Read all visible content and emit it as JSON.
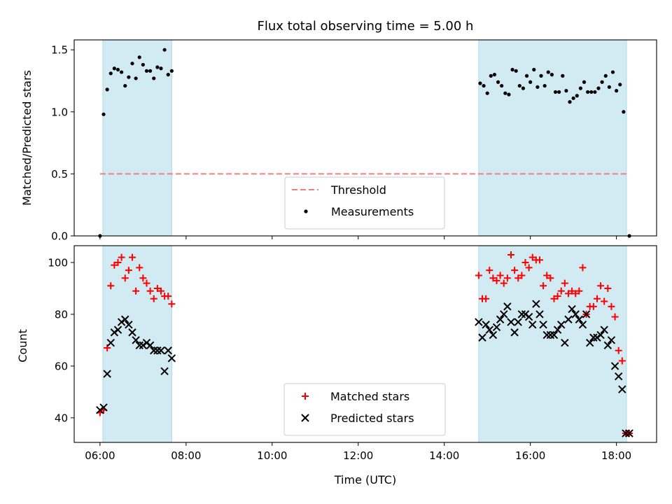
{
  "chart_data": [
    {
      "type": "scatter",
      "title": "Flux total observing time = 5.00 h",
      "xlabel": "",
      "ylabel": "Matched/Predicted stars",
      "x_range": [
        "05:24",
        "18:56"
      ],
      "ylim": [
        0,
        1.58
      ],
      "y_ticks": [
        "0.0",
        "0.5",
        "1.0",
        "1.5"
      ],
      "x_ticks": [
        "06:00",
        "08:00",
        "10:00",
        "12:00",
        "14:00",
        "16:00",
        "18:00"
      ],
      "x_tick_labels_visible": false,
      "shaded_intervals": [
        [
          "06:04",
          "07:40"
        ],
        [
          "14:48",
          "18:14"
        ]
      ],
      "shade_color": "#add8e6",
      "legend_position": "lower center",
      "threshold": {
        "name": "Threshold",
        "value": 0.5,
        "x_start": "06:00",
        "x_end": "18:18",
        "color": "#f08080",
        "style": "dashed"
      },
      "series": [
        {
          "name": "Measurements",
          "color": "#000000",
          "marker": "dot",
          "points": [
            [
              "06:00",
              0.0
            ],
            [
              "06:05",
              0.98
            ],
            [
              "06:10",
              1.18
            ],
            [
              "06:15",
              1.31
            ],
            [
              "06:20",
              1.35
            ],
            [
              "06:25",
              1.34
            ],
            [
              "06:30",
              1.32
            ],
            [
              "06:35",
              1.21
            ],
            [
              "06:40",
              1.28
            ],
            [
              "06:45",
              1.39
            ],
            [
              "06:50",
              1.27
            ],
            [
              "06:55",
              1.44
            ],
            [
              "07:00",
              1.38
            ],
            [
              "07:05",
              1.33
            ],
            [
              "07:10",
              1.33
            ],
            [
              "07:15",
              1.27
            ],
            [
              "07:20",
              1.36
            ],
            [
              "07:25",
              1.35
            ],
            [
              "07:30",
              1.5
            ],
            [
              "07:35",
              1.3
            ],
            [
              "07:40",
              1.33
            ],
            [
              "14:50",
              1.23
            ],
            [
              "14:55",
              1.21
            ],
            [
              "15:00",
              1.15
            ],
            [
              "15:05",
              1.29
            ],
            [
              "15:10",
              1.3
            ],
            [
              "15:15",
              1.24
            ],
            [
              "15:20",
              1.21
            ],
            [
              "15:25",
              1.15
            ],
            [
              "15:30",
              1.14
            ],
            [
              "15:35",
              1.34
            ],
            [
              "15:40",
              1.33
            ],
            [
              "15:45",
              1.21
            ],
            [
              "15:50",
              1.19
            ],
            [
              "15:55",
              1.29
            ],
            [
              "16:00",
              1.24
            ],
            [
              "16:05",
              1.34
            ],
            [
              "16:10",
              1.2
            ],
            [
              "16:15",
              1.29
            ],
            [
              "16:20",
              1.21
            ],
            [
              "16:25",
              1.32
            ],
            [
              "16:30",
              1.3
            ],
            [
              "16:35",
              1.16
            ],
            [
              "16:40",
              1.16
            ],
            [
              "16:45",
              1.29
            ],
            [
              "16:50",
              1.17
            ],
            [
              "16:55",
              1.08
            ],
            [
              "17:00",
              1.11
            ],
            [
              "17:05",
              1.13
            ],
            [
              "17:10",
              1.19
            ],
            [
              "17:15",
              1.24
            ],
            [
              "17:20",
              1.16
            ],
            [
              "17:25",
              1.16
            ],
            [
              "17:30",
              1.16
            ],
            [
              "17:35",
              1.19
            ],
            [
              "17:40",
              1.24
            ],
            [
              "17:45",
              1.29
            ],
            [
              "17:50",
              1.2
            ],
            [
              "17:55",
              1.32
            ],
            [
              "18:00",
              1.17
            ],
            [
              "18:05",
              1.22
            ],
            [
              "18:10",
              1.0
            ],
            [
              "18:18",
              0.0
            ]
          ]
        }
      ]
    },
    {
      "type": "scatter",
      "title": "",
      "xlabel": "Time (UTC)",
      "ylabel": "Count",
      "x_range": [
        "05:24",
        "18:56"
      ],
      "ylim": [
        30.5,
        106.5
      ],
      "y_ticks": [
        "40",
        "60",
        "80",
        "100"
      ],
      "x_ticks": [
        "06:00",
        "08:00",
        "10:00",
        "12:00",
        "14:00",
        "16:00",
        "18:00"
      ],
      "x_tick_labels_visible": true,
      "shaded_intervals": [
        [
          "06:04",
          "07:40"
        ],
        [
          "14:48",
          "18:14"
        ]
      ],
      "shade_color": "#add8e6",
      "legend_position": "lower center",
      "series": [
        {
          "name": "Matched stars",
          "color": "#ff0000",
          "marker": "plus",
          "points": [
            [
              "06:00",
              42
            ],
            [
              "06:05",
              43
            ],
            [
              "06:10",
              67
            ],
            [
              "06:15",
              91
            ],
            [
              "06:20",
              99
            ],
            [
              "06:25",
              100
            ],
            [
              "06:30",
              102
            ],
            [
              "06:35",
              94
            ],
            [
              "06:40",
              97
            ],
            [
              "06:45",
              102
            ],
            [
              "06:50",
              89
            ],
            [
              "06:55",
              98
            ],
            [
              "07:00",
              94
            ],
            [
              "07:05",
              92
            ],
            [
              "07:10",
              89
            ],
            [
              "07:15",
              86
            ],
            [
              "07:20",
              90
            ],
            [
              "07:25",
              89
            ],
            [
              "07:30",
              87
            ],
            [
              "07:35",
              87
            ],
            [
              "07:40",
              84
            ],
            [
              "14:48",
              95
            ],
            [
              "14:53",
              86
            ],
            [
              "14:58",
              86
            ],
            [
              "15:03",
              97
            ],
            [
              "15:08",
              94
            ],
            [
              "15:13",
              93
            ],
            [
              "15:18",
              95
            ],
            [
              "15:23",
              92
            ],
            [
              "15:28",
              94
            ],
            [
              "15:33",
              103
            ],
            [
              "15:38",
              97
            ],
            [
              "15:43",
              94
            ],
            [
              "15:48",
              95
            ],
            [
              "15:53",
              100
            ],
            [
              "15:58",
              98
            ],
            [
              "16:03",
              102
            ],
            [
              "16:08",
              101
            ],
            [
              "16:13",
              101
            ],
            [
              "16:18",
              91
            ],
            [
              "16:23",
              95
            ],
            [
              "16:28",
              94
            ],
            [
              "16:33",
              86
            ],
            [
              "16:38",
              87
            ],
            [
              "16:43",
              89
            ],
            [
              "16:48",
              92
            ],
            [
              "16:53",
              88
            ],
            [
              "16:58",
              89
            ],
            [
              "17:03",
              88
            ],
            [
              "17:08",
              89
            ],
            [
              "17:13",
              98
            ],
            [
              "17:18",
              80
            ],
            [
              "17:23",
              83
            ],
            [
              "17:28",
              83
            ],
            [
              "17:33",
              86
            ],
            [
              "17:38",
              91
            ],
            [
              "17:43",
              85
            ],
            [
              "17:48",
              90
            ],
            [
              "17:53",
              83
            ],
            [
              "17:58",
              79
            ],
            [
              "18:03",
              66
            ],
            [
              "18:08",
              62
            ],
            [
              "18:13",
              34
            ],
            [
              "18:18",
              34
            ]
          ]
        },
        {
          "name": "Predicted stars",
          "color": "#000000",
          "marker": "x",
          "points": [
            [
              "06:00",
              43
            ],
            [
              "06:05",
              44
            ],
            [
              "06:10",
              57
            ],
            [
              "06:15",
              69
            ],
            [
              "06:20",
              73
            ],
            [
              "06:25",
              74
            ],
            [
              "06:30",
              77
            ],
            [
              "06:35",
              78
            ],
            [
              "06:40",
              76
            ],
            [
              "06:45",
              73
            ],
            [
              "06:50",
              70
            ],
            [
              "06:55",
              68
            ],
            [
              "07:00",
              68
            ],
            [
              "07:05",
              69
            ],
            [
              "07:10",
              68
            ],
            [
              "07:15",
              66
            ],
            [
              "07:20",
              66
            ],
            [
              "07:25",
              66
            ],
            [
              "07:30",
              58
            ],
            [
              "07:35",
              66
            ],
            [
              "07:40",
              63
            ],
            [
              "14:48",
              77
            ],
            [
              "14:53",
              71
            ],
            [
              "14:58",
              76
            ],
            [
              "15:03",
              74
            ],
            [
              "15:08",
              72
            ],
            [
              "15:13",
              75
            ],
            [
              "15:18",
              78
            ],
            [
              "15:23",
              80
            ],
            [
              "15:28",
              83
            ],
            [
              "15:33",
              77
            ],
            [
              "15:38",
              73
            ],
            [
              "15:43",
              77
            ],
            [
              "15:48",
              80
            ],
            [
              "15:53",
              80
            ],
            [
              "15:58",
              79
            ],
            [
              "16:03",
              76
            ],
            [
              "16:08",
              84
            ],
            [
              "16:13",
              80
            ],
            [
              "16:18",
              76
            ],
            [
              "16:23",
              72
            ],
            [
              "16:28",
              72
            ],
            [
              "16:33",
              72
            ],
            [
              "16:38",
              74
            ],
            [
              "16:43",
              76
            ],
            [
              "16:48",
              69
            ],
            [
              "16:53",
              78
            ],
            [
              "16:58",
              82
            ],
            [
              "17:03",
              80
            ],
            [
              "17:08",
              78
            ],
            [
              "17:13",
              76
            ],
            [
              "17:18",
              80
            ],
            [
              "17:23",
              69
            ],
            [
              "17:28",
              71
            ],
            [
              "17:33",
              71
            ],
            [
              "17:38",
              72
            ],
            [
              "17:43",
              74
            ],
            [
              "17:48",
              68
            ],
            [
              "17:53",
              70
            ],
            [
              "17:58",
              60
            ],
            [
              "18:03",
              56
            ],
            [
              "18:08",
              51
            ],
            [
              "18:13",
              34
            ],
            [
              "18:18",
              34
            ]
          ]
        }
      ]
    }
  ]
}
